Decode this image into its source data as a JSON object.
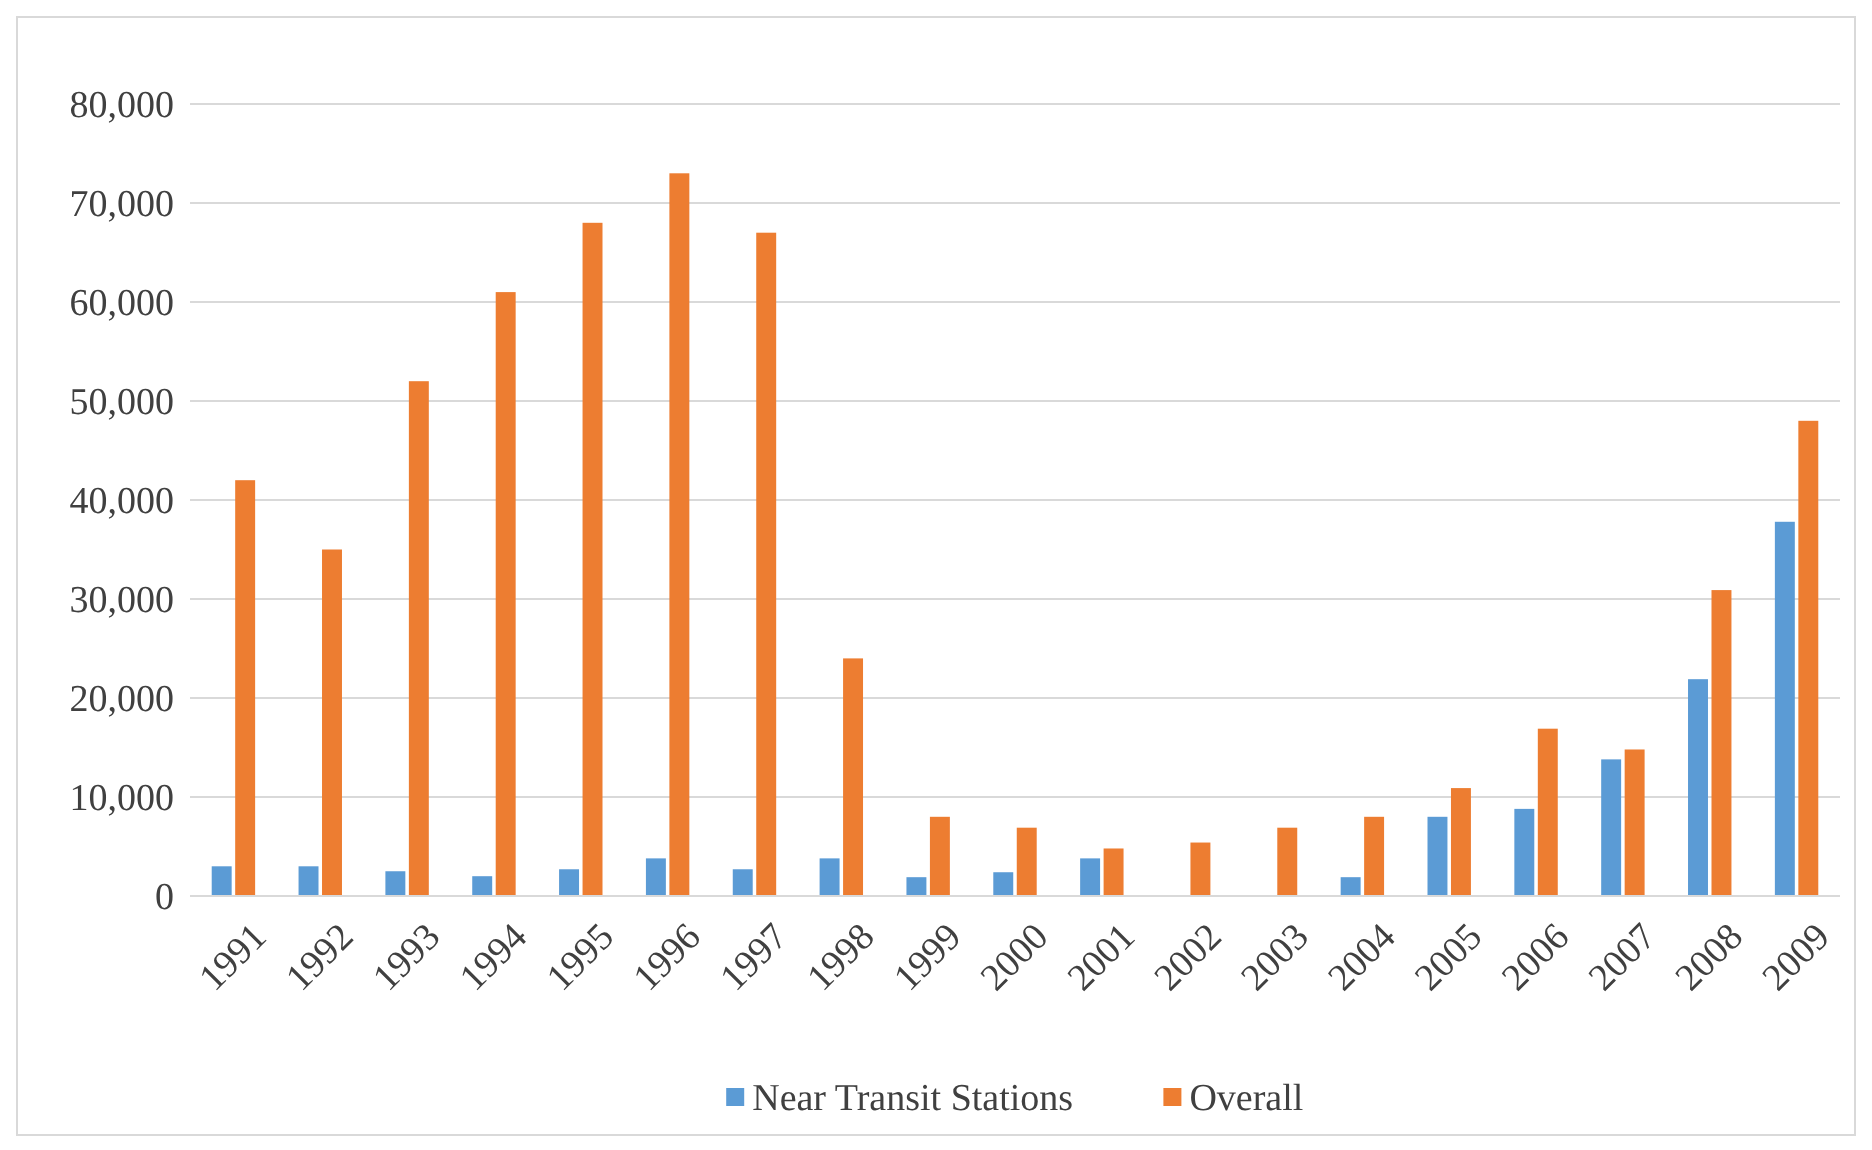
{
  "chart_data": {
    "type": "bar",
    "categories": [
      "1991",
      "1992",
      "1993",
      "1994",
      "1995",
      "1996",
      "1997",
      "1998",
      "1999",
      "2000",
      "2001",
      "2002",
      "2003",
      "2004",
      "2005",
      "2006",
      "2007",
      "2008",
      "2009"
    ],
    "series": [
      {
        "name": "Near Transit Stations",
        "color": "#5b9bd5",
        "values": [
          3000,
          3000,
          2500,
          2000,
          2700,
          3800,
          2700,
          3800,
          1900,
          2400,
          3800,
          null,
          null,
          1900,
          8000,
          8800,
          13800,
          21900,
          37800
        ]
      },
      {
        "name": "Overall",
        "color": "#ed7d31",
        "values": [
          42000,
          35000,
          52000,
          61000,
          68000,
          73000,
          67000,
          24000,
          8000,
          6900,
          4800,
          5400,
          6900,
          8000,
          10900,
          16900,
          14800,
          30900,
          48000
        ]
      }
    ],
    "ylim": [
      0,
      80000
    ],
    "yticks": [
      {
        "value": 0,
        "label": "0"
      },
      {
        "value": 10000,
        "label": "10,000"
      },
      {
        "value": 20000,
        "label": "20,000"
      },
      {
        "value": 30000,
        "label": "30,000"
      },
      {
        "value": 40000,
        "label": "40,000"
      },
      {
        "value": 50000,
        "label": "50,000"
      },
      {
        "value": 60000,
        "label": "60,000"
      },
      {
        "value": 70000,
        "label": "70,000"
      },
      {
        "value": 80000,
        "label": "80,000"
      }
    ],
    "grid": "y",
    "legend": "bottom"
  }
}
